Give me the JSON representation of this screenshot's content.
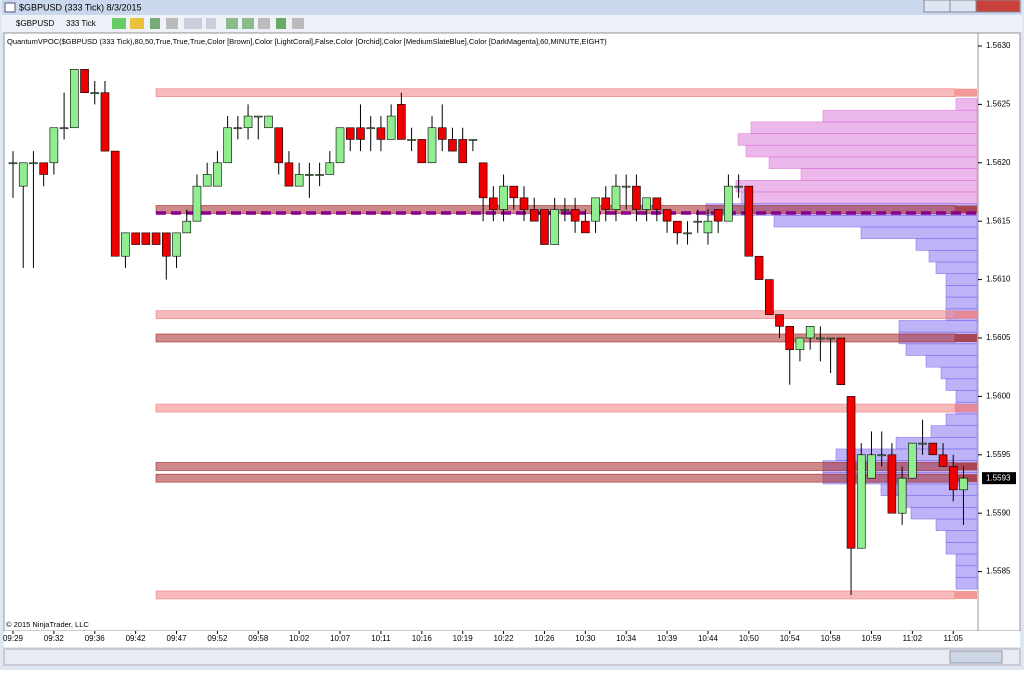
{
  "window": {
    "title": "$GBPUSD (333 Tick)  8/3/2015"
  },
  "toolbar": {
    "instrument": "$GBPUSD",
    "interval": "333 Tick"
  },
  "chart_data": {
    "type": "candlestick",
    "indicator_label": "QuantumVPOC($GBPUSD (333 Tick),80,50,True,True,True,Color [Brown],Color [LightCoral],False,Color [Orchid],Color [MediumSlateBlue],Color [DarkMagenta],60,MINUTE,EIGHT)",
    "copyright": "© 2015 NinjaTrader, LLC",
    "categories": [
      "09:29",
      null,
      null,
      null,
      "09:32",
      null,
      null,
      null,
      "09:36",
      null,
      null,
      null,
      "09:42",
      null,
      null,
      null,
      "09:47",
      null,
      null,
      null,
      "09:52",
      null,
      null,
      null,
      "09:58",
      null,
      null,
      null,
      "10:02",
      null,
      null,
      null,
      "10:07",
      null,
      null,
      null,
      "10:11",
      null,
      null,
      null,
      "10:16",
      null,
      null,
      null,
      "10:19",
      null,
      null,
      null,
      "10:22",
      null,
      null,
      null,
      "10:26",
      null,
      null,
      null,
      "10:30",
      null,
      null,
      null,
      "10:34",
      null,
      null,
      null,
      "10:39",
      null,
      null,
      null,
      "10:44",
      null,
      null,
      null,
      "10:50",
      null,
      null,
      null,
      "10:54",
      null,
      null,
      null,
      "10:58",
      null,
      null,
      null,
      "10:59",
      null,
      null,
      null,
      "11:02",
      null,
      null,
      null,
      "11:05",
      null
    ],
    "open": [
      1.562,
      1.5618,
      1.562,
      1.562,
      1.562,
      1.5623,
      1.5623,
      1.5628,
      1.5626,
      1.5626,
      1.5621,
      1.5612,
      1.5614,
      1.5614,
      1.5614,
      1.5614,
      1.5612,
      1.5614,
      1.5615,
      1.5618,
      1.5618,
      1.562,
      1.5623,
      1.5623,
      1.5624,
      1.5623,
      1.5623,
      1.562,
      1.5618,
      1.5619,
      1.5619,
      1.5619,
      1.562,
      1.5623,
      1.5623,
      1.5623,
      1.5623,
      1.5622,
      1.5625,
      1.5622,
      1.5622,
      1.562,
      1.5623,
      1.5622,
      1.5622,
      1.5622,
      1.562,
      1.5617,
      1.5616,
      1.5618,
      1.5617,
      1.5616,
      1.5616,
      1.5613,
      1.5616,
      1.5616,
      1.5615,
      1.5615,
      1.5617,
      1.5616,
      1.5618,
      1.5618,
      1.5616,
      1.5617,
      1.5616,
      1.5615,
      1.5614,
      1.5615,
      1.5614,
      1.5616,
      1.5615,
      1.5618,
      1.5618,
      1.5612,
      1.561,
      1.5607,
      1.5606,
      1.5604,
      1.5605,
      1.5605,
      1.5605,
      1.5605,
      1.56,
      1.5587,
      1.5593,
      1.5595,
      1.5595,
      1.559,
      1.5593,
      1.5596,
      1.5596,
      1.5595,
      1.5594,
      1.5592
    ],
    "high": [
      1.5621,
      1.562,
      1.5621,
      1.562,
      1.5623,
      1.5626,
      1.5628,
      1.5628,
      1.5627,
      1.5627,
      1.5621,
      1.5614,
      1.5614,
      1.5614,
      1.5614,
      1.5614,
      1.5614,
      1.5616,
      1.5619,
      1.562,
      1.5621,
      1.5624,
      1.5624,
      1.5625,
      1.5624,
      1.5624,
      1.5623,
      1.5621,
      1.562,
      1.562,
      1.562,
      1.5621,
      1.5623,
      1.5623,
      1.5625,
      1.5624,
      1.5624,
      1.5625,
      1.5626,
      1.5623,
      1.5622,
      1.5624,
      1.5625,
      1.5623,
      1.5623,
      1.5622,
      1.562,
      1.5618,
      1.5619,
      1.5618,
      1.5618,
      1.5617,
      1.5616,
      1.5617,
      1.5617,
      1.5617,
      1.5616,
      1.5617,
      1.5618,
      1.5619,
      1.5619,
      1.5619,
      1.5617,
      1.5617,
      1.5616,
      1.5615,
      1.5615,
      1.5616,
      1.5616,
      1.5616,
      1.5619,
      1.5619,
      1.5618,
      1.5612,
      1.561,
      1.5607,
      1.5606,
      1.5605,
      1.5606,
      1.5606,
      1.5605,
      1.5605,
      1.56,
      1.5596,
      1.5597,
      1.5597,
      1.5596,
      1.5594,
      1.5596,
      1.5598,
      1.5596,
      1.5596,
      1.5595,
      1.5594
    ],
    "low": [
      1.5617,
      1.5611,
      1.5611,
      1.5618,
      1.5619,
      1.5622,
      1.5623,
      1.5626,
      1.5625,
      1.5621,
      1.5612,
      1.5611,
      1.5613,
      1.5613,
      1.5613,
      1.561,
      1.5611,
      1.5614,
      1.5615,
      1.5618,
      1.5618,
      1.562,
      1.5622,
      1.5622,
      1.5622,
      1.5623,
      1.5619,
      1.5618,
      1.5618,
      1.5617,
      1.5618,
      1.5619,
      1.562,
      1.5621,
      1.5621,
      1.5621,
      1.5621,
      1.5622,
      1.5622,
      1.5621,
      1.562,
      1.562,
      1.5621,
      1.5621,
      1.562,
      1.5621,
      1.5615,
      1.5615,
      1.5615,
      1.5616,
      1.5615,
      1.5615,
      1.5613,
      1.5613,
      1.5615,
      1.5614,
      1.5614,
      1.5614,
      1.5615,
      1.5615,
      1.5616,
      1.5615,
      1.5615,
      1.5615,
      1.5614,
      1.5613,
      1.5613,
      1.5614,
      1.5613,
      1.5614,
      1.5615,
      1.5617,
      1.5612,
      1.561,
      1.5607,
      1.5605,
      1.5601,
      1.5603,
      1.5604,
      1.5603,
      1.5602,
      1.5601,
      1.5583,
      1.5587,
      1.5593,
      1.5594,
      1.559,
      1.5589,
      1.5593,
      1.5595,
      1.5595,
      1.5594,
      1.5591,
      1.5589
    ],
    "close": [
      1.562,
      1.562,
      1.562,
      1.5619,
      1.5623,
      1.5623,
      1.5628,
      1.5626,
      1.5626,
      1.5621,
      1.5612,
      1.5614,
      1.5613,
      1.5613,
      1.5613,
      1.5612,
      1.5614,
      1.5615,
      1.5618,
      1.5619,
      1.562,
      1.5623,
      1.5623,
      1.5624,
      1.5624,
      1.5624,
      1.562,
      1.5618,
      1.5619,
      1.5619,
      1.5619,
      1.562,
      1.5623,
      1.5622,
      1.5622,
      1.5623,
      1.5622,
      1.5624,
      1.5622,
      1.5622,
      1.562,
      1.5623,
      1.5622,
      1.5621,
      1.562,
      1.5622,
      1.5617,
      1.5616,
      1.5618,
      1.5617,
      1.5616,
      1.5615,
      1.5613,
      1.5616,
      1.5616,
      1.5615,
      1.5614,
      1.5617,
      1.5616,
      1.5618,
      1.5618,
      1.5616,
      1.5617,
      1.5616,
      1.5615,
      1.5614,
      1.5614,
      1.5615,
      1.5615,
      1.5615,
      1.5618,
      1.5618,
      1.5612,
      1.561,
      1.5607,
      1.5606,
      1.5604,
      1.5605,
      1.5606,
      1.5605,
      1.5605,
      1.5601,
      1.5587,
      1.5595,
      1.5595,
      1.5595,
      1.559,
      1.5593,
      1.5596,
      1.5596,
      1.5595,
      1.5594,
      1.5592,
      1.5593
    ],
    "up_color": "#90ee90",
    "down_color": "#ee0000",
    "upper_profile": {
      "color": "#da70d6",
      "prices": [
        1.5625,
        1.5624,
        1.5623,
        1.5622,
        1.5621,
        1.562,
        1.5619,
        1.5618,
        1.5617
      ],
      "volumes": [
        21,
        154,
        226,
        239,
        231,
        208,
        176,
        241,
        236
      ]
    },
    "lower_profile": {
      "color": "#7b68ee",
      "prices": [
        1.5616,
        1.5615,
        1.5614,
        1.5613,
        1.5612,
        1.5611,
        1.561,
        1.5609,
        1.5608,
        1.5607,
        1.5606,
        1.5605,
        1.5604,
        1.5603,
        1.5602,
        1.5601,
        1.56,
        1.5599,
        1.5598,
        1.5597,
        1.5596,
        1.5595,
        1.5594,
        1.5593,
        1.5592,
        1.5591,
        1.559,
        1.5589,
        1.5588,
        1.5587,
        1.5586,
        1.5585,
        1.5584
      ],
      "volumes": [
        271,
        203,
        116,
        61,
        48,
        41,
        31,
        31,
        31,
        31,
        78,
        78,
        71,
        51,
        36,
        31,
        21,
        21,
        31,
        46,
        81,
        141,
        154,
        154,
        96,
        76,
        66,
        41,
        31,
        31,
        21,
        21,
        21
      ]
    },
    "coral_levels": {
      "color": "#f08080",
      "prices": [
        1.5626,
        1.5607,
        1.5599,
        1.5583
      ]
    },
    "brown_levels": {
      "color": "#a52a2a",
      "prices": [
        1.5616,
        1.5605,
        1.5594,
        1.5593
      ]
    },
    "poc_level": {
      "color": "#8b008b",
      "price": 1.56157
    },
    "last_price": 1.5593,
    "ylim": [
      1.558,
      1.5631
    ],
    "yticks": [
      {
        "value": 1.5585,
        "label": "1.5585"
      },
      {
        "value": 1.559,
        "label": "1.5590"
      },
      {
        "value": 1.5595,
        "label": "1.5595"
      },
      {
        "value": 1.56,
        "label": "1.5600"
      },
      {
        "value": 1.5605,
        "label": "1.5605"
      },
      {
        "value": 1.561,
        "label": "1.5610"
      },
      {
        "value": 1.5615,
        "label": "1.5615"
      },
      {
        "value": 1.562,
        "label": "1.5620"
      },
      {
        "value": 1.5625,
        "label": "1.5625"
      },
      {
        "value": 1.563,
        "label": "1.5630"
      }
    ]
  }
}
